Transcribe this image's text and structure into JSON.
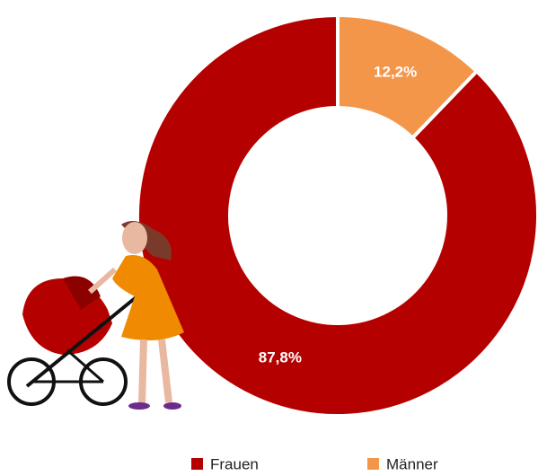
{
  "chart_data": {
    "type": "donut",
    "categories": [
      "Frauen",
      "Männer"
    ],
    "values": [
      87.8,
      12.2
    ],
    "value_labels": [
      "87,8%",
      "12,2%"
    ],
    "colors": [
      "#b50000",
      "#f3964a"
    ]
  }
}
